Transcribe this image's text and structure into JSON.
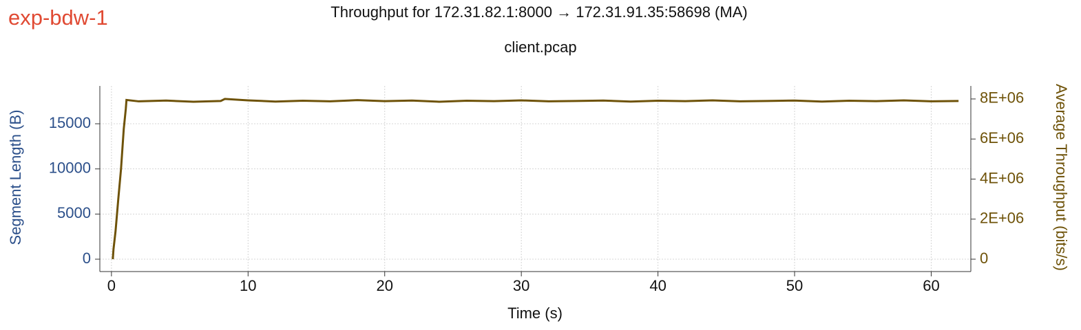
{
  "chart_data": {
    "type": "line",
    "tag": "exp-bdw-1",
    "title": "Throughput for 172.31.82.1:8000 → 172.31.91.35:58698 (MA)",
    "subtitle": "client.pcap",
    "xlabel": "Time (s)",
    "ylabel": "Segment Length (B)",
    "y2label": "Average Throughput (bits/s)",
    "ylabel_color": "#2b4f8a",
    "y2label_color": "#6e5208",
    "grid": true,
    "xlim": [
      -0.85,
      62.9
    ],
    "xticks": [
      0,
      10,
      20,
      30,
      40,
      50,
      60
    ],
    "ylim": [
      -1370,
      19190
    ],
    "yticks": [
      0,
      5000,
      10000,
      15000
    ],
    "y2lim": [
      -618000,
      8650000
    ],
    "y2ticks": [
      0,
      {
        "value": 2000000,
        "label": "2E+06"
      },
      {
        "value": 4000000,
        "label": "4E+06"
      },
      {
        "value": 6000000,
        "label": "6E+06"
      },
      {
        "value": 8000000,
        "label": "8E+06"
      }
    ],
    "x": [
      0.1,
      0.15,
      0.3,
      0.5,
      0.7,
      0.9,
      1.05,
      1.1,
      2,
      4,
      6,
      8,
      8.3,
      10,
      12,
      14,
      16,
      18,
      20,
      22,
      24,
      26,
      28,
      30,
      32,
      34,
      36,
      38,
      40,
      42,
      44,
      46,
      48,
      50,
      52,
      54,
      56,
      58,
      60,
      62
    ],
    "series": [
      {
        "color": "#6e5208",
        "axis": "y2",
        "values": [
          0,
          500000,
          1400000,
          3000000,
          4500000,
          6500000,
          7500000,
          7950000,
          7880000,
          7920000,
          7860000,
          7900000,
          8000000,
          7930000,
          7870000,
          7910000,
          7880000,
          7940000,
          7890000,
          7920000,
          7860000,
          7910000,
          7890000,
          7930000,
          7880000,
          7900000,
          7920000,
          7870000,
          7910000,
          7890000,
          7930000,
          7880000,
          7900000,
          7920000,
          7870000,
          7910000,
          7890000,
          7930000,
          7880000,
          7900000
        ]
      }
    ]
  }
}
